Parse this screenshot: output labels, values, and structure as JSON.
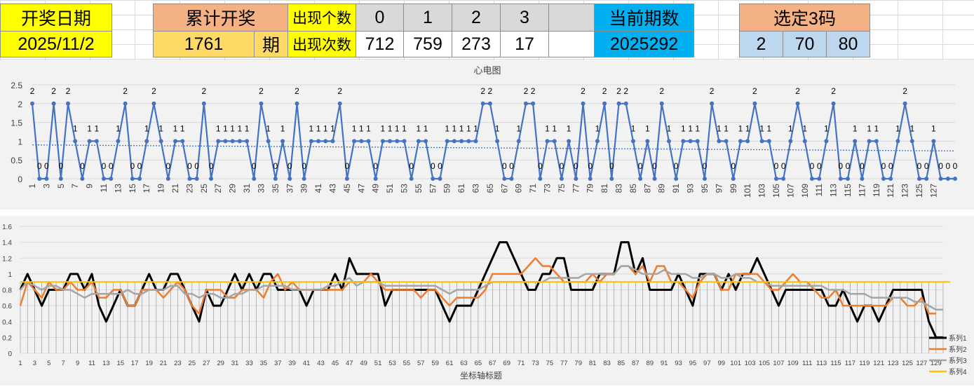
{
  "header": {
    "draw_date_label": "开奖日期",
    "draw_date_value": "2025/11/2",
    "cumulative_label": "累计开奖",
    "cumulative_value": "1761",
    "cumulative_unit": "期",
    "appear_number_label": "出现个数",
    "appear_count_label": "出现次数",
    "numbers": [
      "0",
      "1",
      "2",
      "3"
    ],
    "counts": [
      "712",
      "759",
      "273",
      "17"
    ],
    "current_period_label": "当前期数",
    "current_period_value": "2025292",
    "selected_label": "选定3码",
    "selected_codes": [
      "2",
      "70",
      "80"
    ],
    "colors": {
      "yellow": "#ffff00",
      "salmon": "#f4b183",
      "gold": "#ffd966",
      "gray": "#d9d9d9",
      "cyan": "#00b0f0",
      "lightblue": "#bdd7ee"
    }
  },
  "chart_data": [
    {
      "type": "line",
      "title": "心电图",
      "x_tick_labels": [
        "1",
        "3",
        "5",
        "7",
        "9",
        "11",
        "13",
        "15",
        "17",
        "19",
        "21",
        "23",
        "25",
        "27",
        "29",
        "31",
        "33",
        "35",
        "37",
        "39",
        "41",
        "43",
        "45",
        "47",
        "49",
        "51",
        "53",
        "55",
        "57",
        "59",
        "61",
        "63",
        "65",
        "67",
        "69",
        "71",
        "73",
        "75",
        "77",
        "79",
        "81",
        "83",
        "85",
        "87",
        "89",
        "91",
        "93",
        "95",
        "97",
        "99",
        "101",
        "103",
        "105",
        "107",
        "109",
        "111",
        "113",
        "115",
        "117",
        "119",
        "121",
        "123",
        "125",
        "127"
      ],
      "y_tick_labels": [
        "0",
        "0.5",
        "1",
        "1.5",
        "2",
        "2.5"
      ],
      "ylim": [
        0,
        2.5
      ],
      "series": [
        {
          "values": [
            2,
            0,
            0,
            2,
            0,
            2,
            1,
            0,
            1,
            1,
            0,
            0,
            1,
            2,
            0,
            0,
            1,
            2,
            1,
            0,
            1,
            1,
            0,
            0,
            2,
            0,
            1,
            1,
            1,
            1,
            1,
            0,
            2,
            1,
            0,
            1,
            0,
            2,
            0,
            1,
            1,
            1,
            1,
            2,
            0,
            1,
            1,
            1,
            0,
            1,
            1,
            1,
            1,
            0,
            1,
            1,
            0,
            0,
            1,
            1,
            1,
            1,
            1,
            2,
            2,
            1,
            0,
            0,
            1,
            2,
            2,
            0,
            1,
            1,
            0,
            1,
            0,
            2,
            0,
            1,
            2,
            0,
            2,
            2,
            1,
            0,
            1,
            0,
            2,
            1,
            0,
            1,
            1,
            1,
            0,
            2,
            1,
            1,
            0,
            1,
            1,
            2,
            1,
            1,
            0,
            0,
            1,
            2,
            1,
            0,
            0,
            1,
            2,
            0,
            0,
            1,
            0,
            1,
            1,
            0,
            0,
            1,
            2,
            1,
            0,
            0,
            1,
            0,
            0,
            0
          ]
        },
        {
          "values": [
            0.9,
            0.74
          ]
        }
      ],
      "colors": {
        "series": "#4472c4",
        "trend": "#4472c4"
      },
      "grid": true
    },
    {
      "type": "line",
      "xlabel": "坐标轴标题",
      "x_tick_labels": [
        "1",
        "3",
        "5",
        "7",
        "9",
        "11",
        "13",
        "15",
        "17",
        "19",
        "21",
        "23",
        "25",
        "27",
        "29",
        "31",
        "33",
        "35",
        "37",
        "39",
        "41",
        "43",
        "45",
        "47",
        "49",
        "51",
        "53",
        "55",
        "57",
        "59",
        "61",
        "63",
        "65",
        "67",
        "69",
        "71",
        "73",
        "75",
        "77",
        "79",
        "81",
        "83",
        "85",
        "87",
        "89",
        "91",
        "93",
        "95",
        "97",
        "99",
        "101",
        "103",
        "105",
        "107",
        "109",
        "111",
        "113",
        "115",
        "117",
        "119",
        "121",
        "123",
        "125",
        "127",
        "129"
      ],
      "y_tick_labels": [
        "0",
        "0.2",
        "0.4",
        "0.6",
        "0.8",
        "1",
        "1.2",
        "1.4",
        "1.6"
      ],
      "ylim": [
        0,
        1.6
      ],
      "legend_position": "bottom-right",
      "series": [
        {
          "name": "系列1",
          "color": "#000000",
          "values": [
            0.8,
            1.0,
            0.8,
            0.6,
            0.8,
            0.8,
            0.8,
            1.0,
            1.0,
            0.8,
            1.0,
            0.6,
            0.4,
            0.6,
            0.8,
            0.6,
            0.6,
            0.8,
            1.0,
            0.8,
            0.8,
            1.0,
            1.0,
            0.8,
            0.6,
            0.4,
            0.8,
            0.6,
            0.6,
            0.8,
            1.0,
            0.8,
            1.0,
            0.8,
            1.0,
            1.0,
            0.8,
            0.8,
            0.8,
            0.8,
            0.6,
            0.8,
            0.8,
            0.8,
            1.0,
            0.8,
            1.2,
            1.0,
            1.0,
            1.0,
            1.0,
            0.6,
            0.8,
            0.8,
            0.8,
            0.8,
            0.8,
            0.8,
            0.8,
            0.6,
            0.4,
            0.6,
            0.6,
            0.6,
            0.8,
            1.0,
            1.2,
            1.4,
            1.4,
            1.2,
            1.0,
            0.8,
            0.8,
            1.0,
            1.0,
            1.2,
            1.2,
            0.8,
            0.8,
            0.8,
            0.8,
            1.0,
            1.0,
            1.0,
            1.4,
            1.4,
            1.0,
            1.2,
            0.8,
            0.8,
            0.8,
            0.8,
            1.0,
            0.8,
            0.6,
            1.0,
            1.0,
            1.0,
            0.8,
            1.0,
            0.8,
            1.0,
            1.0,
            1.2,
            1.0,
            0.8,
            0.6,
            0.8,
            0.8,
            0.8,
            0.8,
            0.8,
            0.8,
            0.6,
            0.6,
            0.8,
            0.6,
            0.4,
            0.6,
            0.6,
            0.4,
            0.6,
            0.8,
            0.8,
            0.8,
            0.8,
            0.8,
            0.4,
            0.2,
            0.2
          ]
        },
        {
          "name": "系列2",
          "color": "#ed7d31",
          "values": [
            0.6,
            0.9,
            0.8,
            0.7,
            0.9,
            0.8,
            0.8,
            0.9,
            0.8,
            0.8,
            0.9,
            0.7,
            0.7,
            0.8,
            0.8,
            0.6,
            0.6,
            0.8,
            0.8,
            0.8,
            0.7,
            0.8,
            0.9,
            0.8,
            0.6,
            0.5,
            0.8,
            0.8,
            0.8,
            0.7,
            0.7,
            0.8,
            0.8,
            0.8,
            0.7,
            0.9,
            1.0,
            0.8,
            0.9,
            0.8,
            0.8,
            0.8,
            0.8,
            0.8,
            0.8,
            0.8,
            0.9,
            0.9,
            0.9,
            1.0,
            0.9,
            0.8,
            0.8,
            0.8,
            0.8,
            0.8,
            0.7,
            0.8,
            0.8,
            0.7,
            0.6,
            0.7,
            0.7,
            0.7,
            0.7,
            0.8,
            1.0,
            1.0,
            1.0,
            1.0,
            1.0,
            1.1,
            1.2,
            1.1,
            1.1,
            1.0,
            0.9,
            0.9,
            0.9,
            0.9,
            1.0,
            0.9,
            1.0,
            1.0,
            1.1,
            1.1,
            1.0,
            1.1,
            0.9,
            1.1,
            1.1,
            0.9,
            0.9,
            0.8,
            0.7,
            0.9,
            1.0,
            1.0,
            0.8,
            0.8,
            1.0,
            1.0,
            1.0,
            1.0,
            0.9,
            0.8,
            0.8,
            0.9,
            1.0,
            0.9,
            0.9,
            0.8,
            0.7,
            0.7,
            0.8,
            0.6,
            0.6,
            0.6,
            0.6,
            0.6,
            0.6,
            0.6,
            0.7,
            0.7,
            0.6,
            0.6,
            0.7,
            0.5,
            0.5
          ]
        },
        {
          "name": "系列3",
          "color": "#a5a5a5",
          "values": [
            0.8,
            0.9,
            0.85,
            0.8,
            0.85,
            0.85,
            0.8,
            0.8,
            0.75,
            0.7,
            0.75,
            0.75,
            0.75,
            0.75,
            0.75,
            0.8,
            0.75,
            0.75,
            0.8,
            0.8,
            0.8,
            0.85,
            0.85,
            0.75,
            0.75,
            0.7,
            0.75,
            0.75,
            0.7,
            0.7,
            0.75,
            0.75,
            0.8,
            0.8,
            0.85,
            0.85,
            0.85,
            0.85,
            0.8,
            0.8,
            0.8,
            0.8,
            0.8,
            0.85,
            0.85,
            0.9,
            0.95,
            0.85,
            0.9,
            0.9,
            0.9,
            0.85,
            0.85,
            0.85,
            0.85,
            0.85,
            0.85,
            0.85,
            0.85,
            0.8,
            0.75,
            0.8,
            0.8,
            0.8,
            0.8,
            0.85,
            0.9,
            0.9,
            0.9,
            0.9,
            0.9,
            0.9,
            0.9,
            0.9,
            0.95,
            0.95,
            0.95,
            0.95,
            0.95,
            1.0,
            1.0,
            1.0,
            1.0,
            1.0,
            1.1,
            1.1,
            1.05,
            1.0,
            1.0,
            1.0,
            1.05,
            1.0,
            1.0,
            1.0,
            0.95,
            0.95,
            1.0,
            1.0,
            0.95,
            0.95,
            1.0,
            0.95,
            0.95,
            0.9,
            0.9,
            0.85,
            0.85,
            0.85,
            0.85,
            0.85,
            0.85,
            0.85,
            0.85,
            0.8,
            0.8,
            0.8,
            0.75,
            0.75,
            0.75,
            0.7,
            0.7,
            0.7,
            0.7,
            0.7,
            0.7,
            0.65,
            0.65,
            0.6,
            0.55,
            0.55
          ]
        },
        {
          "name": "系列4",
          "color": "#ffc000",
          "values": [
            0.9,
            0.9,
            0.9,
            0.9,
            0.9,
            0.9,
            0.9,
            0.9,
            0.9,
            0.9,
            0.9,
            0.9,
            0.9,
            0.9,
            0.9,
            0.9,
            0.9,
            0.9,
            0.9,
            0.9,
            0.9,
            0.9,
            0.9,
            0.9,
            0.9,
            0.9,
            0.9,
            0.9,
            0.9,
            0.9,
            0.9,
            0.9,
            0.9,
            0.9,
            0.9,
            0.9,
            0.9,
            0.9,
            0.9,
            0.9,
            0.9,
            0.9,
            0.9,
            0.9,
            0.9,
            0.9,
            0.9,
            0.9,
            0.9,
            0.9,
            0.9,
            0.9,
            0.9,
            0.9,
            0.9,
            0.9,
            0.9,
            0.9,
            0.9,
            0.9,
            0.9,
            0.9,
            0.9,
            0.9,
            0.9,
            0.9,
            0.9,
            0.9,
            0.9,
            0.9,
            0.9,
            0.9,
            0.9,
            0.9,
            0.9,
            0.9,
            0.9,
            0.9,
            0.9,
            0.9,
            0.9,
            0.9,
            0.9,
            0.9,
            0.9,
            0.9,
            0.9,
            0.9,
            0.9,
            0.9,
            0.9,
            0.9,
            0.9,
            0.9,
            0.9,
            0.9,
            0.9,
            0.9,
            0.9,
            0.9,
            0.9,
            0.9,
            0.9,
            0.9,
            0.9,
            0.9,
            0.9,
            0.9,
            0.9,
            0.9,
            0.9,
            0.9,
            0.9,
            0.9,
            0.9,
            0.9,
            0.9,
            0.9,
            0.9,
            0.9,
            0.9,
            0.9,
            0.9,
            0.9,
            0.9,
            0.9,
            0.9,
            0.9,
            0.9,
            0.9,
            0.9
          ]
        }
      ],
      "grid": true
    }
  ]
}
